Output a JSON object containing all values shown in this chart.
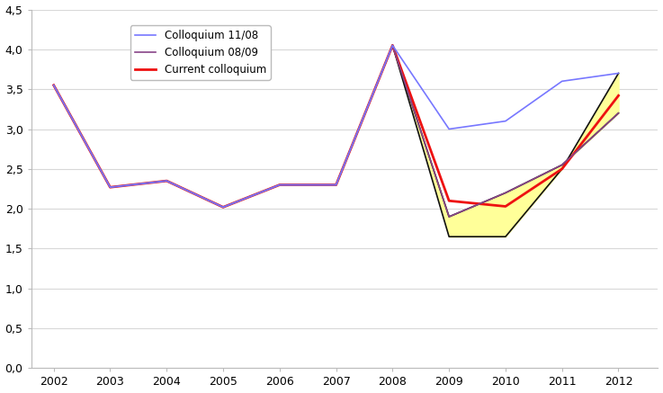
{
  "colloquium_1108": {
    "years": [
      2002,
      2003,
      2004,
      2005,
      2006,
      2007,
      2008,
      2009,
      2010,
      2011,
      2012
    ],
    "values": [
      3.55,
      2.27,
      2.35,
      2.02,
      2.3,
      2.3,
      4.05,
      3.0,
      3.1,
      3.6,
      3.7
    ],
    "color": "#7777ff",
    "label": "Colloquium 11/08",
    "linewidth": 1.2
  },
  "colloquium_0809": {
    "years": [
      2002,
      2003,
      2004,
      2005,
      2006,
      2007,
      2008,
      2009,
      2010,
      2011,
      2012
    ],
    "values": [
      3.55,
      2.27,
      2.35,
      2.02,
      2.3,
      2.3,
      4.05,
      1.9,
      2.2,
      2.55,
      3.2
    ],
    "color": "#884488",
    "label": "Colloquium 08/09",
    "linewidth": 1.2
  },
  "current_colloquium": {
    "years": [
      2002,
      2003,
      2004,
      2005,
      2006,
      2007,
      2008,
      2009,
      2010,
      2011,
      2012
    ],
    "values": [
      3.55,
      2.27,
      2.35,
      2.02,
      2.3,
      2.3,
      4.05,
      2.1,
      2.03,
      2.5,
      3.42
    ],
    "color": "#ee1111",
    "label": "Current colloquium",
    "linewidth": 2.0
  },
  "fan_upper_years": [
    2008,
    2009,
    2010,
    2011,
    2012
  ],
  "fan_upper_vals": [
    4.05,
    1.9,
    2.2,
    2.55,
    3.2
  ],
  "fan_lower_years": [
    2008,
    2009,
    2010,
    2011,
    2012
  ],
  "fan_lower_vals": [
    4.05,
    1.65,
    1.65,
    2.5,
    3.7
  ],
  "ylim": [
    0.0,
    4.5
  ],
  "yticks": [
    0.0,
    0.5,
    1.0,
    1.5,
    2.0,
    2.5,
    3.0,
    3.5,
    4.0,
    4.5
  ],
  "ytick_labels": [
    "0,0",
    "0,5",
    "1,0",
    "1,5",
    "2,0",
    "2,5",
    "3,0",
    "3,5",
    "4,0",
    "4,5"
  ],
  "xlim": [
    2001.6,
    2012.7
  ],
  "xticks": [
    2002,
    2003,
    2004,
    2005,
    2006,
    2007,
    2008,
    2009,
    2010,
    2011,
    2012
  ],
  "background_color": "#ffffff",
  "fan_color": "#ffff99",
  "fan_edge_color": "#111111",
  "grid_color": "#d8d8d8",
  "figsize": [
    7.37,
    4.37
  ],
  "dpi": 100
}
